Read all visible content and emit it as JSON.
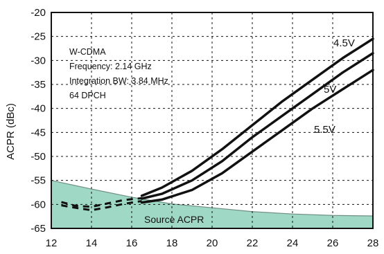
{
  "chart_data": {
    "type": "line",
    "title": "",
    "xlabel": "",
    "ylabel": "ACPR (dBc)",
    "xlim": [
      12,
      28
    ],
    "ylim": [
      -65,
      -20
    ],
    "xticks": [
      12,
      14,
      16,
      18,
      20,
      22,
      24,
      26,
      28
    ],
    "yticks": [
      -20,
      -25,
      -30,
      -35,
      -40,
      -45,
      -50,
      -55,
      -60,
      -65
    ],
    "grid": true,
    "annotation_lines": [
      "W-CDMA",
      "Frequency: 2.14 GHz",
      "Integration BW: 3.84 MHz",
      "64 DPCH"
    ],
    "series": [
      {
        "name": "4.5V",
        "x": [
          16.5,
          17.5,
          19,
          20.5,
          22,
          23.5,
          25,
          26.5,
          28
        ],
        "y": [
          -58.2,
          -56.5,
          -53,
          -48.5,
          -43.5,
          -38.5,
          -34,
          -29.5,
          -25.5
        ]
      },
      {
        "name": "5V",
        "x": [
          16.5,
          17.5,
          19,
          20.5,
          22,
          23.5,
          25,
          26.5,
          28
        ],
        "y": [
          -58.8,
          -57.8,
          -55,
          -51,
          -46,
          -41.5,
          -37,
          -32.5,
          -28.5
        ]
      },
      {
        "name": "5.5V",
        "x": [
          16.5,
          17.5,
          19,
          20.5,
          22,
          23.5,
          25,
          26.5,
          28
        ],
        "y": [
          -59.6,
          -59,
          -57,
          -53.5,
          -49,
          -44.5,
          -40,
          -36,
          -32
        ]
      },
      {
        "name": "",
        "style": "dashed",
        "x": [
          12.5,
          13.2,
          14,
          14.8,
          15.6,
          16.5
        ],
        "y": [
          -59.5,
          -60.3,
          -60.5,
          -59.8,
          -59.1,
          -58.7
        ]
      },
      {
        "name": "",
        "style": "dashed",
        "x": [
          12.5,
          13.2,
          14,
          14.8,
          15.6,
          16.5
        ],
        "y": [
          -60.2,
          -60.7,
          -61.2,
          -60.6,
          -59.9,
          -59.3
        ]
      }
    ],
    "shaded_region": {
      "label": "Source ACPR",
      "color": "#9fd8c4",
      "x": [
        12,
        14,
        16,
        18,
        20,
        22,
        24,
        26,
        28
      ],
      "y": [
        -55,
        -56.8,
        -58.5,
        -59.9,
        -60.7,
        -61.5,
        -62,
        -62.3,
        -62.4
      ]
    }
  }
}
